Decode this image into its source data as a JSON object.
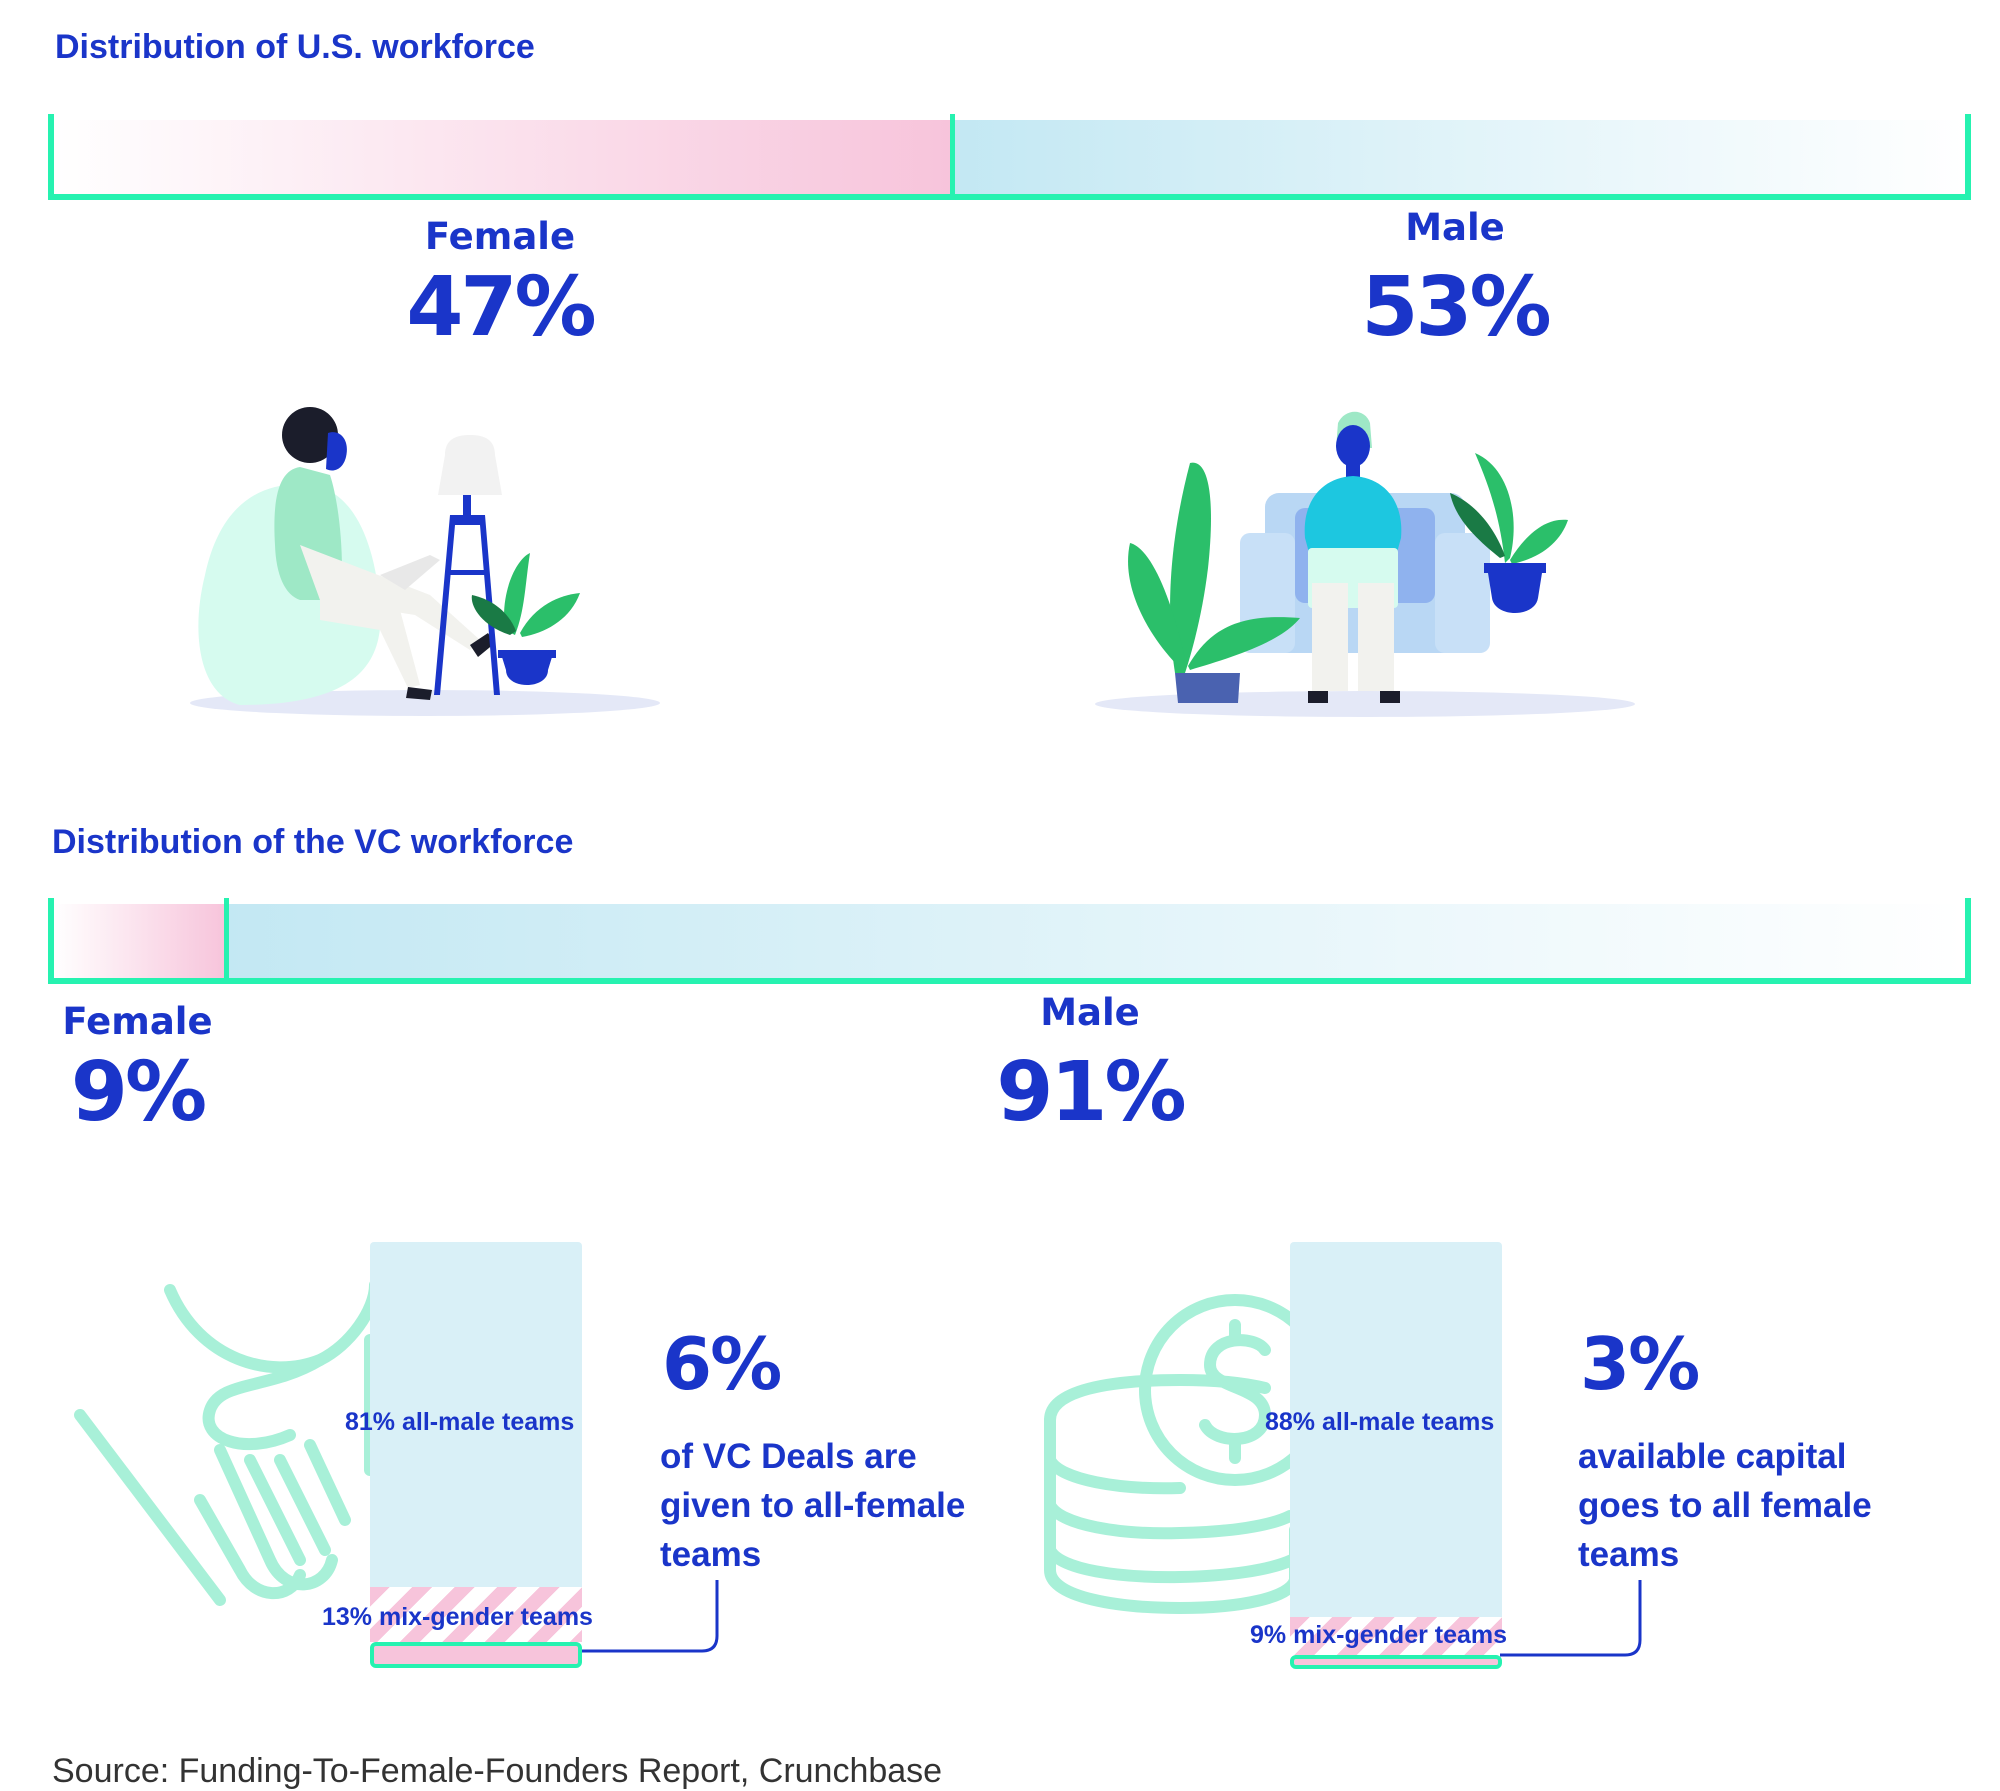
{
  "us_section": {
    "title": "Distribution of  U.S. workforce",
    "female_label": "Female",
    "female_value": "47%",
    "male_label": "Male",
    "male_value": "53%"
  },
  "vc_section": {
    "title": "Distribution of the VC workforce",
    "female_label": "Female",
    "female_value": "9%",
    "male_label": "Male",
    "male_value": "91%"
  },
  "deals": {
    "all_male_label": "81% all-male teams",
    "mix_gender_label": "13% mix-gender teams",
    "highlight_value": "6%",
    "description": "of VC Deals are given to all-female teams"
  },
  "capital": {
    "all_male_label": "88% all-male teams",
    "mix_gender_label": "9% mix-gender teams",
    "highlight_value": "3%",
    "description": "available capital goes to all female teams"
  },
  "source": "Source: Funding-To-Female-Founders Report, Crunchbase",
  "colors": {
    "text": "#1a35c9",
    "frame": "#26f2b0",
    "female": "#f7c4db",
    "male": "#c3e8f3",
    "outline_art": "#a8f0d8"
  },
  "icons": [
    "woman-laptop-illustration",
    "man-laptop-illustration",
    "handshake-icon",
    "coins-dollar-icon"
  ],
  "chart_data": [
    {
      "type": "bar",
      "stacked": true,
      "title": "Distribution of  U.S. workforce",
      "categories": [
        "Female",
        "Male"
      ],
      "values": [
        47,
        53
      ],
      "unit": "%"
    },
    {
      "type": "bar",
      "stacked": true,
      "title": "Distribution of the VC workforce",
      "categories": [
        "Female",
        "Male"
      ],
      "values": [
        9,
        91
      ],
      "unit": "%"
    },
    {
      "type": "bar",
      "stacked": true,
      "categories": [
        "all-male teams",
        "mix-gender teams",
        "all-female teams"
      ],
      "values": [
        81,
        13,
        6
      ],
      "unit": "%"
    },
    {
      "type": "bar",
      "stacked": true,
      "categories": [
        "all-male teams",
        "mix-gender teams",
        "all-female teams"
      ],
      "values": [
        88,
        9,
        3
      ],
      "unit": "%"
    }
  ]
}
